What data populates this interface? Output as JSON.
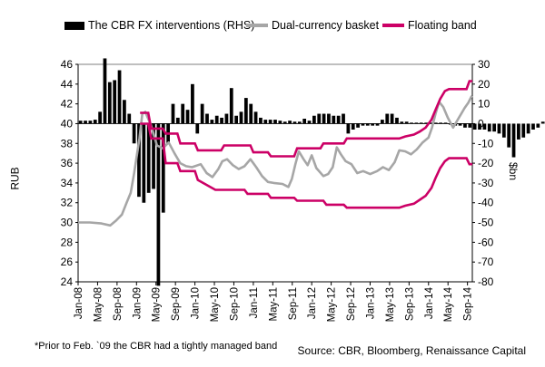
{
  "chart_data": {
    "type": "bar+line",
    "title": "",
    "legend": [
      "The CBR FX interventions (RHS)",
      "Dual-currency basket",
      "Floating band"
    ],
    "ylabel_left": "RUB",
    "ylabel_right": "$bn",
    "ylim_left": [
      24,
      46
    ],
    "ylim_right": [
      -80,
      30
    ],
    "yticks_left": [
      "24",
      "26",
      "28",
      "30",
      "32",
      "34",
      "36",
      "38",
      "40",
      "42",
      "44",
      "46"
    ],
    "yticks_right": [
      "-80",
      "-70",
      "-60",
      "-50",
      "-40",
      "-30",
      "-20",
      "-10",
      "0",
      "10",
      "20",
      "30"
    ],
    "x_start": 2008.0,
    "x_end": 2014.75,
    "xticks": [
      "Jan-08",
      "May-08",
      "Sep-08",
      "Jan-09",
      "May-09",
      "Sep-09",
      "Jan-10",
      "May-10",
      "Sep-10",
      "Jan-11",
      "May-11",
      "Sep-11",
      "Jan-12",
      "May-12",
      "Sep-12",
      "Jan-13",
      "May-13",
      "Sep-13",
      "Jan-14",
      "May-14",
      "Sep-14"
    ],
    "colors": {
      "bars": "#000000",
      "basket": "#a6a6a6",
      "band": "#cc0066"
    },
    "interventions_bn": [
      1.5,
      1.5,
      1.5,
      2,
      6,
      33,
      21,
      22,
      27,
      12,
      5,
      -10,
      -37,
      -40,
      -35,
      -33,
      -82,
      -45,
      -10,
      10,
      3,
      10,
      7,
      20,
      -5,
      10,
      5,
      2,
      4,
      3,
      5,
      18,
      4,
      6,
      13,
      10,
      6,
      3,
      2,
      2,
      2,
      1.5,
      1,
      1.5,
      1,
      1,
      2.5,
      1.5,
      4,
      5,
      5,
      5,
      4,
      4,
      5,
      -5,
      -3,
      -2,
      -1,
      -1,
      -1,
      -1,
      2,
      5,
      5,
      3,
      1,
      1,
      0.5,
      0.5,
      0.5,
      0.5,
      0.5,
      0.5,
      0.5,
      0.5,
      -0.5,
      -1,
      -1,
      -2,
      -2,
      -3,
      -3,
      -3,
      -4,
      -4,
      -5,
      -7,
      -12,
      -17,
      -8,
      -7,
      -5,
      -3,
      -2,
      1,
      8,
      5,
      1.5
    ],
    "basket_rub": [
      [
        2008.0,
        30.0
      ],
      [
        2008.2,
        30.0
      ],
      [
        2008.4,
        29.9
      ],
      [
        2008.55,
        29.7
      ],
      [
        2008.65,
        30.2
      ],
      [
        2008.75,
        30.8
      ],
      [
        2008.83,
        32.0
      ],
      [
        2008.9,
        33.0
      ],
      [
        2008.96,
        35.0
      ],
      [
        2009.05,
        38.5
      ],
      [
        2009.1,
        41.0
      ],
      [
        2009.15,
        41.2
      ],
      [
        2009.25,
        39.8
      ],
      [
        2009.35,
        37.8
      ],
      [
        2009.45,
        37.5
      ],
      [
        2009.55,
        38.1
      ],
      [
        2009.65,
        37.0
      ],
      [
        2009.75,
        36.0
      ],
      [
        2009.85,
        35.7
      ],
      [
        2009.95,
        35.6
      ],
      [
        2010.1,
        35.9
      ],
      [
        2010.2,
        35.0
      ],
      [
        2010.3,
        34.6
      ],
      [
        2010.4,
        35.4
      ],
      [
        2010.47,
        36.2
      ],
      [
        2010.55,
        36.4
      ],
      [
        2010.65,
        35.8
      ],
      [
        2010.75,
        35.4
      ],
      [
        2010.85,
        35.7
      ],
      [
        2010.95,
        36.4
      ],
      [
        2011.05,
        35.6
      ],
      [
        2011.15,
        34.7
      ],
      [
        2011.25,
        34.1
      ],
      [
        2011.35,
        34.0
      ],
      [
        2011.5,
        33.9
      ],
      [
        2011.6,
        33.6
      ],
      [
        2011.66,
        34.4
      ],
      [
        2011.72,
        35.9
      ],
      [
        2011.78,
        37.2
      ],
      [
        2011.86,
        36.4
      ],
      [
        2011.93,
        35.8
      ],
      [
        2012.0,
        36.8
      ],
      [
        2012.08,
        35.5
      ],
      [
        2012.2,
        34.7
      ],
      [
        2012.28,
        34.9
      ],
      [
        2012.36,
        35.6
      ],
      [
        2012.43,
        37.6
      ],
      [
        2012.5,
        36.9
      ],
      [
        2012.58,
        36.2
      ],
      [
        2012.68,
        35.9
      ],
      [
        2012.78,
        35.0
      ],
      [
        2012.88,
        35.2
      ],
      [
        2013.0,
        34.9
      ],
      [
        2013.12,
        35.2
      ],
      [
        2013.22,
        35.6
      ],
      [
        2013.32,
        35.3
      ],
      [
        2013.42,
        36.1
      ],
      [
        2013.5,
        37.3
      ],
      [
        2013.6,
        37.2
      ],
      [
        2013.7,
        36.9
      ],
      [
        2013.8,
        37.4
      ],
      [
        2013.9,
        38.1
      ],
      [
        2014.0,
        38.6
      ],
      [
        2014.06,
        39.6
      ],
      [
        2014.12,
        41.0
      ],
      [
        2014.18,
        42.2
      ],
      [
        2014.25,
        41.7
      ],
      [
        2014.33,
        40.6
      ],
      [
        2014.42,
        39.6
      ],
      [
        2014.5,
        40.4
      ],
      [
        2014.56,
        41.0
      ],
      [
        2014.62,
        41.6
      ],
      [
        2014.68,
        42.1
      ],
      [
        2014.74,
        42.8
      ]
    ],
    "band_upper_rub": [
      [
        2009.06,
        41.1
      ],
      [
        2009.2,
        41.1
      ],
      [
        2009.25,
        39.5
      ],
      [
        2009.45,
        39.5
      ],
      [
        2009.5,
        39.0
      ],
      [
        2009.7,
        39.0
      ],
      [
        2009.75,
        38.0
      ],
      [
        2010.0,
        38.0
      ],
      [
        2010.05,
        37.3
      ],
      [
        2010.45,
        37.3
      ],
      [
        2010.5,
        37.8
      ],
      [
        2010.95,
        37.8
      ],
      [
        2011.0,
        37.1
      ],
      [
        2011.25,
        37.1
      ],
      [
        2011.3,
        36.7
      ],
      [
        2011.7,
        36.7
      ],
      [
        2011.75,
        37.5
      ],
      [
        2012.15,
        37.5
      ],
      [
        2012.2,
        38.0
      ],
      [
        2012.55,
        38.0
      ],
      [
        2012.6,
        38.5
      ],
      [
        2013.1,
        38.5
      ],
      [
        2013.5,
        38.5
      ],
      [
        2013.6,
        38.7
      ],
      [
        2013.75,
        38.9
      ],
      [
        2013.85,
        39.2
      ],
      [
        2013.95,
        39.6
      ],
      [
        2014.05,
        40.4
      ],
      [
        2014.12,
        41.4
      ],
      [
        2014.2,
        42.5
      ],
      [
        2014.28,
        43.3
      ],
      [
        2014.35,
        43.5
      ],
      [
        2014.65,
        43.5
      ],
      [
        2014.7,
        44.3
      ],
      [
        2014.75,
        44.3
      ]
    ],
    "band_lower_rub": [
      [
        2009.06,
        40.0
      ],
      [
        2009.2,
        40.0
      ],
      [
        2009.25,
        38.5
      ],
      [
        2009.45,
        38.5
      ],
      [
        2009.5,
        36.0
      ],
      [
        2009.7,
        36.0
      ],
      [
        2009.75,
        35.2
      ],
      [
        2010.0,
        35.2
      ],
      [
        2010.05,
        34.3
      ],
      [
        2010.35,
        33.3
      ],
      [
        2010.85,
        33.3
      ],
      [
        2010.9,
        32.9
      ],
      [
        2011.25,
        32.9
      ],
      [
        2011.3,
        32.5
      ],
      [
        2011.7,
        32.5
      ],
      [
        2011.75,
        32.2
      ],
      [
        2012.2,
        32.2
      ],
      [
        2012.25,
        31.8
      ],
      [
        2012.55,
        31.8
      ],
      [
        2012.6,
        31.5
      ],
      [
        2013.25,
        31.5
      ],
      [
        2013.5,
        31.5
      ],
      [
        2013.6,
        31.7
      ],
      [
        2013.75,
        31.9
      ],
      [
        2013.85,
        32.3
      ],
      [
        2013.95,
        32.7
      ],
      [
        2014.05,
        33.5
      ],
      [
        2014.12,
        34.5
      ],
      [
        2014.2,
        35.5
      ],
      [
        2014.28,
        36.2
      ],
      [
        2014.35,
        36.5
      ],
      [
        2014.65,
        36.5
      ],
      [
        2014.7,
        35.9
      ],
      [
        2014.75,
        35.9
      ]
    ]
  },
  "footnote": "*Prior to Feb. `09 the CBR had a tightly managed band",
  "source": "Source: CBR, Bloomberg, Renaissance Capital"
}
